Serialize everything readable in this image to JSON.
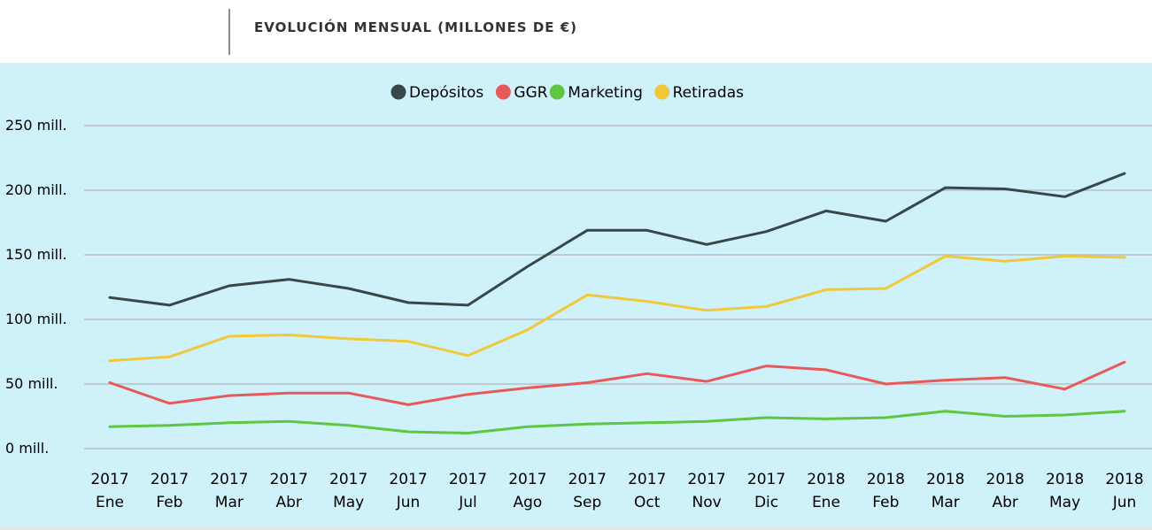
{
  "header": {
    "title": "EVOLUCIÓN MENSUAL (MILLONES DE €)"
  },
  "chart_data": {
    "type": "line",
    "x_years": [
      "2017",
      "2017",
      "2017",
      "2017",
      "2017",
      "2017",
      "2017",
      "2017",
      "2017",
      "2017",
      "2017",
      "2017",
      "2018",
      "2018",
      "2018",
      "2018",
      "2018",
      "2018"
    ],
    "x_months": [
      "Ene",
      "Feb",
      "Mar",
      "Abr",
      "May",
      "Jun",
      "Jul",
      "Ago",
      "Sep",
      "Oct",
      "Nov",
      "Dic",
      "Ene",
      "Feb",
      "Mar",
      "Abr",
      "May",
      "Jun"
    ],
    "y_ticks": [
      0,
      50,
      100,
      150,
      200,
      250
    ],
    "y_tick_labels": [
      "0 mill.",
      "50 mill.",
      "100 mill.",
      "150 mill.",
      "200 mill.",
      "250 mill."
    ],
    "ylim": [
      0,
      250
    ],
    "grid": true,
    "legend_position": "top-center",
    "series": [
      {
        "name": "Depósitos",
        "color": "#37474a",
        "values": [
          117,
          111,
          126,
          131,
          124,
          113,
          111,
          141,
          169,
          169,
          158,
          168,
          184,
          176,
          202,
          201,
          195,
          213
        ]
      },
      {
        "name": "GGR",
        "color": "#e85a5a",
        "values": [
          51,
          35,
          41,
          43,
          43,
          34,
          42,
          47,
          51,
          58,
          52,
          64,
          61,
          50,
          53,
          55,
          46,
          67
        ]
      },
      {
        "name": "Marketing",
        "color": "#5ec63f",
        "values": [
          17,
          18,
          20,
          21,
          18,
          13,
          12,
          17,
          19,
          20,
          21,
          24,
          23,
          24,
          29,
          25,
          26,
          29
        ]
      },
      {
        "name": "Retiradas",
        "color": "#f0c93a",
        "values": [
          68,
          71,
          87,
          88,
          85,
          83,
          72,
          92,
          119,
          114,
          107,
          110,
          123,
          124,
          149,
          145,
          149,
          148
        ]
      }
    ]
  }
}
